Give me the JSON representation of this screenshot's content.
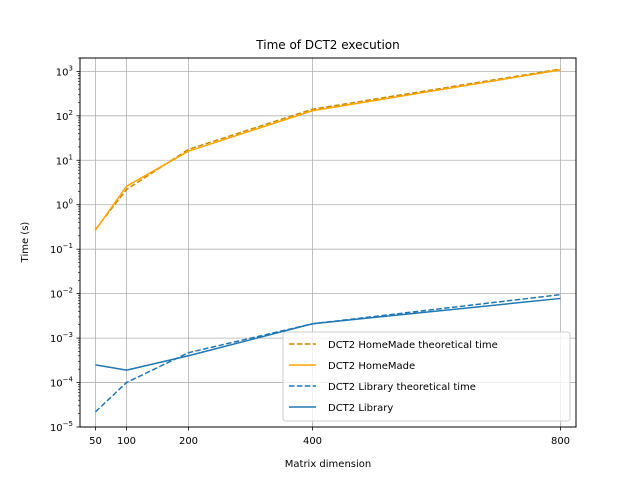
{
  "chart_data": {
    "type": "line",
    "title": "Time of DCT2 execution",
    "xlabel": "Matrix dimension",
    "ylabel": "Time (s)",
    "x_ticks": [
      50,
      100,
      200,
      400,
      800
    ],
    "xlim": [
      25,
      825
    ],
    "y_scale": "log",
    "ylim": [
      1e-05,
      2000
    ],
    "y_ticks": [
      {
        "value": 1e-05,
        "base": "10",
        "exp": "−5"
      },
      {
        "value": 0.0001,
        "base": "10",
        "exp": "−4"
      },
      {
        "value": 0.001,
        "base": "10",
        "exp": "−3"
      },
      {
        "value": 0.01,
        "base": "10",
        "exp": "−2"
      },
      {
        "value": 0.1,
        "base": "10",
        "exp": "−1"
      },
      {
        "value": 1,
        "base": "10",
        "exp": "0"
      },
      {
        "value": 10,
        "base": "10",
        "exp": "1"
      },
      {
        "value": 100,
        "base": "10",
        "exp": "2"
      },
      {
        "value": 1000,
        "base": "10",
        "exp": "3"
      }
    ],
    "grid": true,
    "legend_position": "bottom-right",
    "x": [
      50,
      100,
      200,
      400,
      800
    ],
    "series": [
      {
        "name": "DCT2 HomeMade theoretical time",
        "color": "#c98a00",
        "dash": true,
        "values": [
          0.28,
          2.2,
          17.6,
          141,
          1125
        ]
      },
      {
        "name": "DCT2 HomeMade",
        "color": "#ffa500",
        "dash": false,
        "values": [
          0.27,
          2.6,
          16,
          130,
          1080
        ]
      },
      {
        "name": "DCT2 Library theoretical time",
        "color": "#1f77b4",
        "dash": true,
        "values": [
          2.2e-05,
          0.0001,
          0.00047,
          0.0021,
          0.0095
        ]
      },
      {
        "name": "DCT2 Library",
        "color": "#1f77b4",
        "dash": false,
        "values": [
          0.00025,
          0.00019,
          0.0004,
          0.0021,
          0.0078
        ]
      }
    ]
  }
}
